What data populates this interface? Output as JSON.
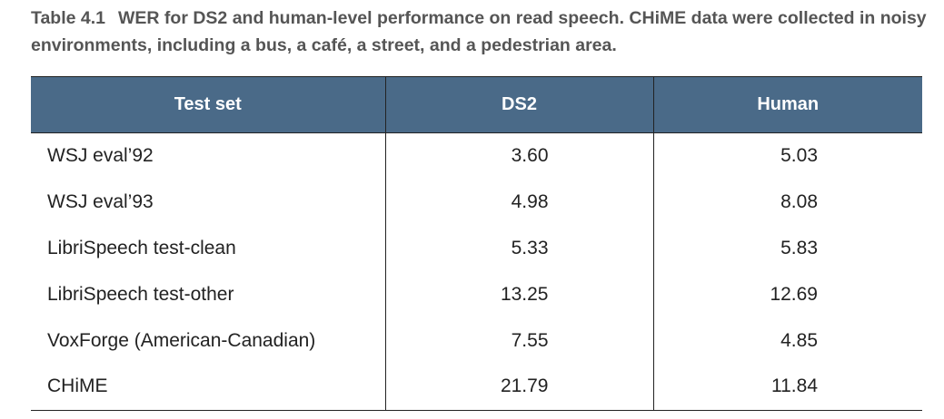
{
  "caption": {
    "label": "Table 4.1",
    "text": "WER for DS2 and human-level performance on read speech. CHiME data were collected in noisy environments, including a bus, a café, a street, and a pedestrian area."
  },
  "table": {
    "header": [
      "Test set",
      "DS2",
      "Human"
    ],
    "rows": [
      [
        "WSJ eval’92",
        "3.60",
        "5.03"
      ],
      [
        "WSJ eval’93",
        "4.98",
        "8.08"
      ],
      [
        "LibriSpeech test-clean",
        "5.33",
        "5.83"
      ],
      [
        "LibriSpeech test-other",
        "13.25",
        "12.69"
      ],
      [
        "VoxForge (American-Canadian)",
        "7.55",
        "4.85"
      ],
      [
        "CHiME",
        "21.79",
        "11.84"
      ]
    ]
  }
}
